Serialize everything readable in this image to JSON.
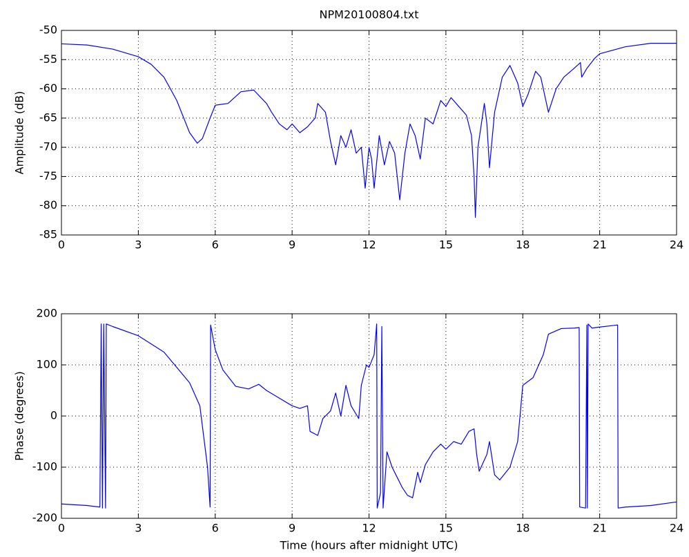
{
  "chart_data": [
    {
      "type": "line",
      "title": "NPM20100804.txt",
      "ylabel": "Amplitude (dB)",
      "grid": true,
      "color": "#0000ff",
      "xlim": [
        0,
        24
      ],
      "xticks": [
        0,
        3,
        6,
        9,
        12,
        15,
        18,
        21,
        24
      ],
      "ylim": [
        -85,
        -50
      ],
      "yticks": [
        -85,
        -80,
        -75,
        -70,
        -65,
        -60,
        -55,
        -50
      ],
      "x": [
        0,
        1,
        2,
        3,
        3.5,
        4,
        4.5,
        5,
        5.3,
        5.5,
        5.8,
        6,
        6.5,
        7,
        7.5,
        8,
        8.2,
        8.5,
        8.8,
        9,
        9.3,
        9.6,
        9.9,
        10.0,
        10.3,
        10.5,
        10.7,
        10.9,
        11.1,
        11.3,
        11.5,
        11.7,
        11.85,
        12.0,
        12.1,
        12.2,
        12.4,
        12.6,
        12.8,
        13.0,
        13.2,
        13.4,
        13.6,
        13.8,
        14.0,
        14.2,
        14.5,
        14.8,
        15.0,
        15.2,
        15.5,
        15.8,
        16.0,
        16.1,
        16.15,
        16.25,
        16.5,
        16.6,
        16.7,
        16.9,
        17.2,
        17.5,
        17.8,
        18.0,
        18.2,
        18.5,
        18.7,
        18.9,
        19.0,
        19.3,
        19.6,
        20.0,
        20.25,
        20.3,
        20.5,
        20.8,
        21,
        22,
        23,
        24
      ],
      "values": [
        -52.3,
        -52.5,
        -53.2,
        -54.5,
        -55.8,
        -58,
        -62,
        -67.5,
        -69.3,
        -68.5,
        -65,
        -62.8,
        -62.5,
        -60.5,
        -60.2,
        -62.5,
        -64,
        -66,
        -67,
        -66,
        -67.5,
        -66.5,
        -65,
        -62.5,
        -64,
        -69,
        -73,
        -68,
        -70,
        -67,
        -71,
        -70,
        -77,
        -70,
        -72,
        -77,
        -68,
        -73,
        -69,
        -71,
        -79,
        -71,
        -66,
        -68,
        -72,
        -65,
        -66,
        -62,
        -63,
        -61.5,
        -63,
        -64.5,
        -68,
        -75,
        -82,
        -70,
        -62.5,
        -66,
        -73.5,
        -64,
        -58,
        -56,
        -59,
        -63,
        -61,
        -57,
        -58,
        -62,
        -64,
        -60,
        -58,
        -56.5,
        -55.5,
        -58,
        -56.5,
        -54.8,
        -54,
        -52.8,
        -52.2,
        -52.2
      ]
    },
    {
      "type": "line",
      "ylabel": "Phase (degrees)",
      "xlabel": "Time (hours after midnight UTC)",
      "grid": true,
      "color": "#0000ff",
      "xlim": [
        0,
        24
      ],
      "xticks": [
        0,
        3,
        6,
        9,
        12,
        15,
        18,
        21,
        24
      ],
      "ylim": [
        -200,
        200
      ],
      "yticks": [
        -200,
        -100,
        0,
        100,
        200
      ],
      "x": [
        0,
        1,
        1.5,
        1.55,
        1.6,
        1.65,
        1.72,
        1.75,
        2,
        3,
        4,
        5,
        5.4,
        5.7,
        5.8,
        5.82,
        6,
        6.3,
        6.8,
        7.3,
        7.7,
        8.0,
        8.5,
        9.0,
        9.3,
        9.6,
        9.7,
        10,
        10.2,
        10.5,
        10.7,
        10.9,
        11.1,
        11.3,
        11.6,
        11.7,
        11.9,
        12.0,
        12.2,
        12.3,
        12.32,
        12.45,
        12.5,
        12.55,
        12.7,
        12.9,
        13.1,
        13.3,
        13.5,
        13.7,
        13.9,
        14.0,
        14.2,
        14.5,
        14.8,
        15.0,
        15.3,
        15.6,
        15.9,
        16.1,
        16.2,
        16.3,
        16.6,
        16.7,
        16.9,
        17.1,
        17.5,
        17.8,
        18.0,
        18.4,
        18.8,
        19.0,
        19.5,
        20.0,
        20.2,
        20.22,
        20.45,
        20.5,
        20.52,
        20.55,
        20.7,
        21,
        21.7,
        21.72,
        22,
        23,
        24
      ],
      "values": [
        -172,
        -175,
        -178,
        180,
        -180,
        180,
        -180,
        180,
        175,
        157,
        125,
        65,
        20,
        -100,
        -178,
        178,
        130,
        90,
        58,
        53,
        62,
        50,
        35,
        20,
        15,
        20,
        -30,
        -38,
        -5,
        10,
        45,
        0,
        60,
        20,
        -5,
        60,
        100,
        95,
        120,
        180,
        -180,
        -150,
        175,
        -180,
        -70,
        -100,
        -120,
        -140,
        -155,
        -160,
        -110,
        -130,
        -95,
        -70,
        -55,
        -65,
        -50,
        -55,
        -30,
        -25,
        -75,
        -108,
        -75,
        -50,
        -115,
        -125,
        -100,
        -50,
        60,
        75,
        120,
        160,
        171,
        172,
        173,
        -178,
        -180,
        178,
        -180,
        180,
        172,
        174,
        178,
        -180,
        -178,
        -175,
        -168
      ]
    }
  ]
}
